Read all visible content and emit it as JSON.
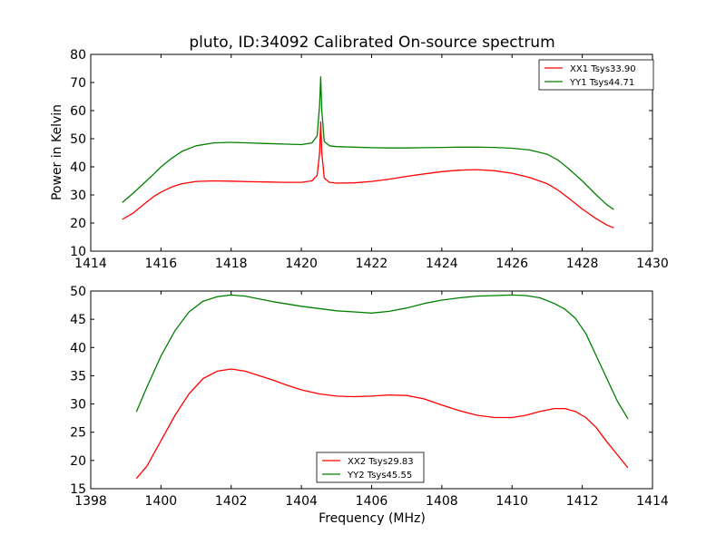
{
  "chart_data": [
    {
      "type": "line",
      "title": "pluto, ID:34092 Calibrated On-source spectrum",
      "xlabel": "",
      "ylabel": "Power in Kelvin",
      "xlim": [
        1414,
        1430
      ],
      "ylim": [
        10,
        80
      ],
      "xticks": [
        1414,
        1416,
        1418,
        1420,
        1422,
        1424,
        1426,
        1428,
        1430
      ],
      "yticks": [
        10,
        20,
        30,
        40,
        50,
        60,
        70,
        80
      ],
      "grid": false,
      "legend_position": "top-right",
      "series": [
        {
          "name": "XX1 Tsys33.90",
          "color": "#ff0000",
          "x": [
            1414.9,
            1415.2,
            1415.5,
            1415.8,
            1416.0,
            1416.3,
            1416.6,
            1417.0,
            1417.5,
            1418.0,
            1418.5,
            1419.0,
            1419.5,
            1420.0,
            1420.3,
            1420.45,
            1420.52,
            1420.55,
            1420.58,
            1420.65,
            1420.8,
            1421.0,
            1421.5,
            1422.0,
            1422.5,
            1423.0,
            1423.5,
            1424.0,
            1424.5,
            1425.0,
            1425.5,
            1426.0,
            1426.5,
            1427.0,
            1427.3,
            1427.6,
            1428.0,
            1428.4,
            1428.7,
            1428.9
          ],
          "y": [
            21.3,
            23.5,
            26.5,
            29.5,
            31.0,
            32.8,
            34.0,
            34.8,
            35.0,
            34.9,
            34.7,
            34.6,
            34.5,
            34.5,
            35.0,
            37.0,
            45.0,
            56.0,
            45.0,
            36.0,
            34.5,
            34.2,
            34.3,
            34.8,
            35.6,
            36.6,
            37.5,
            38.3,
            38.8,
            39.0,
            38.6,
            37.7,
            36.2,
            34.0,
            31.8,
            29.0,
            25.0,
            21.5,
            19.3,
            18.3
          ]
        },
        {
          "name": "YY1 Tsys44.71",
          "color": "#008000",
          "x": [
            1414.9,
            1415.2,
            1415.5,
            1415.8,
            1416.0,
            1416.3,
            1416.6,
            1417.0,
            1417.5,
            1418.0,
            1418.5,
            1419.0,
            1419.5,
            1420.0,
            1420.3,
            1420.45,
            1420.52,
            1420.55,
            1420.58,
            1420.65,
            1420.8,
            1421.0,
            1421.5,
            1422.0,
            1422.5,
            1423.0,
            1423.5,
            1424.0,
            1424.5,
            1425.0,
            1425.5,
            1426.0,
            1426.5,
            1427.0,
            1427.3,
            1427.6,
            1428.0,
            1428.4,
            1428.7,
            1428.9
          ],
          "y": [
            27.3,
            30.5,
            34.0,
            37.5,
            40.0,
            43.0,
            45.5,
            47.5,
            48.5,
            48.7,
            48.5,
            48.3,
            48.1,
            47.9,
            48.5,
            51.0,
            62.0,
            72.0,
            60.0,
            49.0,
            47.5,
            47.2,
            47.0,
            46.8,
            46.7,
            46.7,
            46.8,
            46.9,
            47.0,
            47.0,
            46.9,
            46.6,
            46.0,
            44.5,
            42.5,
            39.5,
            35.0,
            30.0,
            26.5,
            24.8
          ]
        }
      ]
    },
    {
      "type": "line",
      "title": "",
      "xlabel": "Frequency (MHz)",
      "ylabel": "",
      "xlim": [
        1398,
        1414
      ],
      "ylim": [
        15,
        50
      ],
      "xticks": [
        1398,
        1400,
        1402,
        1404,
        1406,
        1408,
        1410,
        1412,
        1414
      ],
      "yticks": [
        15,
        20,
        25,
        30,
        35,
        40,
        45,
        50
      ],
      "grid": false,
      "legend_position": "bottom-center",
      "series": [
        {
          "name": "XX2 Tsys29.83",
          "color": "#ff0000",
          "x": [
            1399.3,
            1399.6,
            1400.0,
            1400.4,
            1400.8,
            1401.2,
            1401.6,
            1402.0,
            1402.4,
            1402.8,
            1403.2,
            1403.6,
            1404.0,
            1404.5,
            1405.0,
            1405.5,
            1406.0,
            1406.5,
            1407.0,
            1407.5,
            1408.0,
            1408.5,
            1409.0,
            1409.5,
            1410.0,
            1410.4,
            1410.8,
            1411.2,
            1411.5,
            1411.8,
            1412.1,
            1412.4,
            1412.7,
            1413.0,
            1413.3
          ],
          "y": [
            16.8,
            19.0,
            23.5,
            28.0,
            31.8,
            34.5,
            35.8,
            36.2,
            35.8,
            35.0,
            34.2,
            33.3,
            32.5,
            31.8,
            31.4,
            31.3,
            31.4,
            31.6,
            31.5,
            30.9,
            29.8,
            28.8,
            28.0,
            27.6,
            27.6,
            28.0,
            28.7,
            29.2,
            29.2,
            28.7,
            27.6,
            25.8,
            23.3,
            21.0,
            18.7
          ]
        },
        {
          "name": "YY2 Tsys45.55",
          "color": "#008000",
          "x": [
            1399.3,
            1399.6,
            1400.0,
            1400.4,
            1400.8,
            1401.2,
            1401.6,
            1402.0,
            1402.4,
            1402.8,
            1403.2,
            1403.6,
            1404.0,
            1404.5,
            1405.0,
            1405.5,
            1406.0,
            1406.5,
            1407.0,
            1407.5,
            1408.0,
            1408.5,
            1409.0,
            1409.5,
            1410.0,
            1410.4,
            1410.8,
            1411.2,
            1411.5,
            1411.8,
            1412.1,
            1412.4,
            1412.7,
            1413.0,
            1413.3
          ],
          "y": [
            28.6,
            33.0,
            38.5,
            43.0,
            46.3,
            48.2,
            49.0,
            49.3,
            49.1,
            48.6,
            48.1,
            47.7,
            47.3,
            46.9,
            46.5,
            46.3,
            46.1,
            46.4,
            47.0,
            47.8,
            48.4,
            48.8,
            49.1,
            49.2,
            49.3,
            49.2,
            48.8,
            47.8,
            46.8,
            45.2,
            42.5,
            38.5,
            34.5,
            30.5,
            27.4
          ]
        }
      ]
    }
  ]
}
